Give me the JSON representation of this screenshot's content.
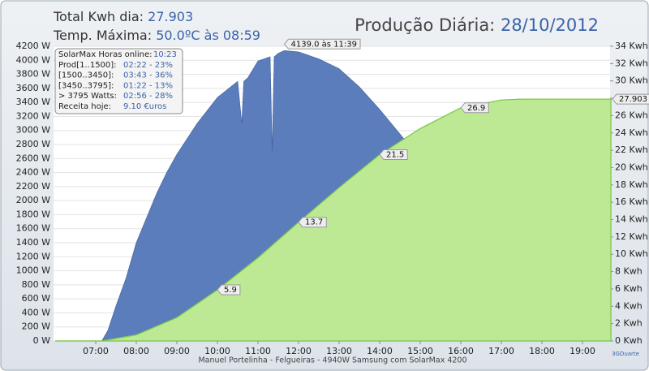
{
  "header": {
    "total_label": "Total Kwh dia:",
    "total_value": "27.903",
    "temp_label": "Temp. Máxima:",
    "temp_value": "50.0ºC às 08:59"
  },
  "info_box": [
    [
      "SolarMax Horas online:",
      "10:23"
    ],
    [
      "Prod[1..1500]:",
      "02:22 - 23%"
    ],
    [
      "[1500..3450]:",
      "03:43 - 36%"
    ],
    [
      "[3450..3795]:",
      "01:22 - 13%"
    ],
    [
      "> 3795 Watts:",
      "02:56 - 28%"
    ],
    [
      "Receita hoje:",
      "9.10 €uros"
    ]
  ],
  "footer": "Manuel Portelinha - Felgueiras -  4940W Samsung com SolarMax 4200",
  "credit": "3GDuarte",
  "chart_data": {
    "type": "area",
    "title": "Produção Diária:",
    "subtitle": "28/10/2012",
    "xlim": [
      5.96,
      19.68
    ],
    "xticks": [
      {
        "value": 7,
        "label": "07:00"
      },
      {
        "value": 8,
        "label": "08:00"
      },
      {
        "value": 9,
        "label": "09:00"
      },
      {
        "value": 10,
        "label": "10:00"
      },
      {
        "value": 11,
        "label": "11:00"
      },
      {
        "value": 12,
        "label": "12:00"
      },
      {
        "value": 13,
        "label": "13:00"
      },
      {
        "value": 14,
        "label": "14:00"
      },
      {
        "value": 15,
        "label": "15:00"
      },
      {
        "value": 16,
        "label": "16:00"
      },
      {
        "value": 17,
        "label": "17:00"
      },
      {
        "value": 18,
        "label": "18:00"
      },
      {
        "value": 19,
        "label": "19:00"
      }
    ],
    "ylim": [
      0,
      4200
    ],
    "yticks": [
      {
        "value": 0,
        "label": "0 W"
      },
      {
        "value": 200,
        "label": "200 W"
      },
      {
        "value": 400,
        "label": "400 W"
      },
      {
        "value": 600,
        "label": "600 W"
      },
      {
        "value": 800,
        "label": "800 W"
      },
      {
        "value": 1000,
        "label": "1000 W"
      },
      {
        "value": 1200,
        "label": "1200 W"
      },
      {
        "value": 1400,
        "label": "1400 W"
      },
      {
        "value": 1600,
        "label": "1600 W"
      },
      {
        "value": 1800,
        "label": "1800 W"
      },
      {
        "value": 2000,
        "label": "2000 W"
      },
      {
        "value": 2200,
        "label": "2200 W"
      },
      {
        "value": 2400,
        "label": "2400 W"
      },
      {
        "value": 2600,
        "label": "2600 W"
      },
      {
        "value": 2800,
        "label": "2800 W"
      },
      {
        "value": 3000,
        "label": "3000 W"
      },
      {
        "value": 3200,
        "label": "3200 W"
      },
      {
        "value": 3400,
        "label": "3400 W"
      },
      {
        "value": 3600,
        "label": "3600 W"
      },
      {
        "value": 3800,
        "label": "3800 W"
      },
      {
        "value": 4000,
        "label": "4000 W"
      },
      {
        "value": 4200,
        "label": "4200 W"
      }
    ],
    "y2lim": [
      0,
      34
    ],
    "y2ticks": [
      {
        "value": 0,
        "label": "0 Kwh"
      },
      {
        "value": 2,
        "label": "2 Kwh"
      },
      {
        "value": 4,
        "label": "4 Kwh"
      },
      {
        "value": 6,
        "label": "6 Kwh"
      },
      {
        "value": 8,
        "label": "8 Kwh"
      },
      {
        "value": 10,
        "label": "10 Kwh"
      },
      {
        "value": 12,
        "label": "12 Kwh"
      },
      {
        "value": 14,
        "label": "14 Kwh"
      },
      {
        "value": 16,
        "label": "16 Kwh"
      },
      {
        "value": 18,
        "label": "18 Kwh"
      },
      {
        "value": 20,
        "label": "20 Kwh"
      },
      {
        "value": 22,
        "label": "22 Kwh"
      },
      {
        "value": 24,
        "label": "24 Kwh"
      },
      {
        "value": 26,
        "label": "26 Kwh"
      },
      {
        "value": 28,
        "label": "28 Kwh"
      },
      {
        "value": 30,
        "label": "30 Kwh"
      },
      {
        "value": 32,
        "label": "32 Kwh"
      },
      {
        "value": 34,
        "label": "34 Kwh"
      }
    ],
    "grid": true,
    "series": [
      {
        "color": "#5b7dbb",
        "axis": "y",
        "x": [
          6,
          7.15,
          7.3,
          7.5,
          7.75,
          8,
          8.25,
          8.5,
          8.75,
          9,
          9.5,
          10,
          10.5,
          10.6,
          10.65,
          10.75,
          11,
          11.3,
          11.35,
          11.4,
          11.5,
          11.65,
          12,
          12.5,
          13,
          13.5,
          14,
          14.5,
          15,
          15.5,
          16,
          16.5,
          17,
          17.2,
          17.4,
          19.7
        ],
        "values": [
          0,
          0,
          150,
          500,
          900,
          1400,
          1750,
          2100,
          2400,
          2660,
          3100,
          3470,
          3700,
          3100,
          3700,
          3750,
          3990,
          4050,
          2700,
          4050,
          4100,
          4139,
          4120,
          4020,
          3880,
          3620,
          3300,
          2950,
          2600,
          2100,
          1500,
          900,
          400,
          150,
          0,
          0
        ],
        "value_labels": [
          null,
          null,
          null,
          null,
          null,
          null,
          null,
          null,
          null,
          null,
          null,
          null,
          null,
          null,
          null,
          null,
          null,
          null,
          null,
          null,
          null,
          "4139.0 às 11:39",
          null,
          null,
          null,
          null,
          null,
          null,
          null,
          null,
          null,
          null,
          null,
          null,
          null,
          null
        ]
      },
      {
        "color": "#bde894",
        "axis": "y2",
        "x": [
          6,
          7.15,
          8,
          9,
          10,
          11,
          12,
          13,
          14,
          15,
          16,
          17,
          17.5,
          19.7
        ],
        "values": [
          0,
          0,
          0.7,
          2.7,
          5.9,
          9.6,
          13.7,
          17.7,
          21.5,
          24.5,
          26.9,
          27.8,
          27.9,
          27.903
        ],
        "value_labels": [
          null,
          null,
          null,
          null,
          "5.9",
          null,
          "13.7",
          null,
          "21.5",
          null,
          "26.9",
          null,
          null,
          "27.903"
        ]
      }
    ]
  }
}
